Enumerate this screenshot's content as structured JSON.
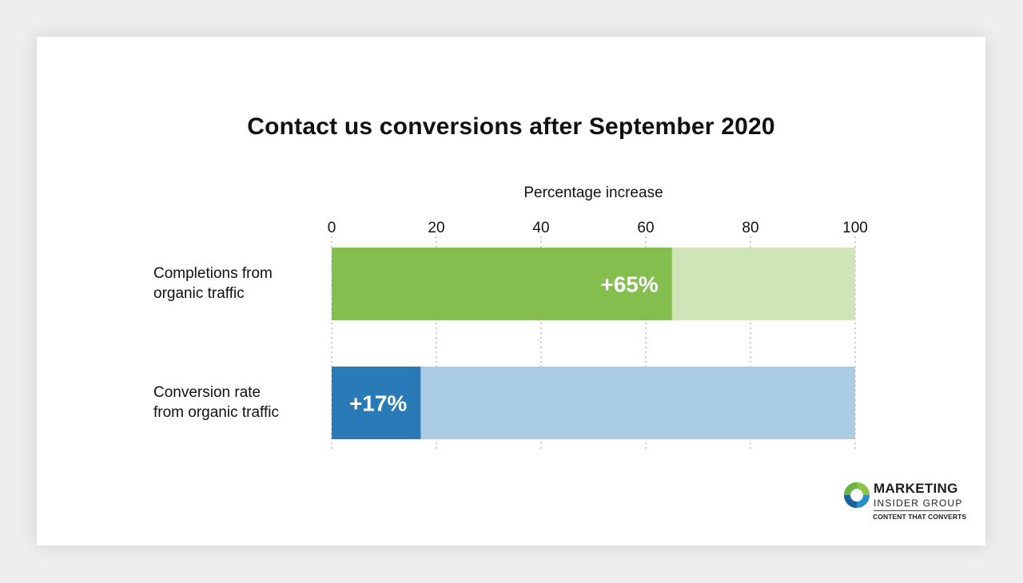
{
  "chart_data": {
    "type": "bar",
    "orientation": "horizontal",
    "stacked_background": true,
    "title": "Contact us conversions after September 2020",
    "xlabel": "Percentage increase",
    "xlim": [
      0,
      100
    ],
    "xticks": [
      "0",
      "20",
      "40",
      "60",
      "80",
      "100"
    ],
    "grid": "vertical dotted",
    "categories": [
      [
        "Completions from",
        "organic traffic"
      ],
      [
        "Conversion rate",
        "from organic traffic"
      ]
    ],
    "values": [
      65,
      17
    ],
    "value_labels": [
      "+65%",
      "+17%"
    ],
    "colors": [
      {
        "bar": "#84be4f",
        "track": "#cfe5b8"
      },
      {
        "bar": "#2a7ab8",
        "track": "#aacde3"
      }
    ]
  },
  "logo": {
    "line1": "MARKETING",
    "line2": "INSIDER GROUP",
    "tagline": "CONTENT THAT CONVERTS",
    "colors": [
      "#8cc63f",
      "#2a8fc9",
      "#1c5f9a"
    ]
  }
}
